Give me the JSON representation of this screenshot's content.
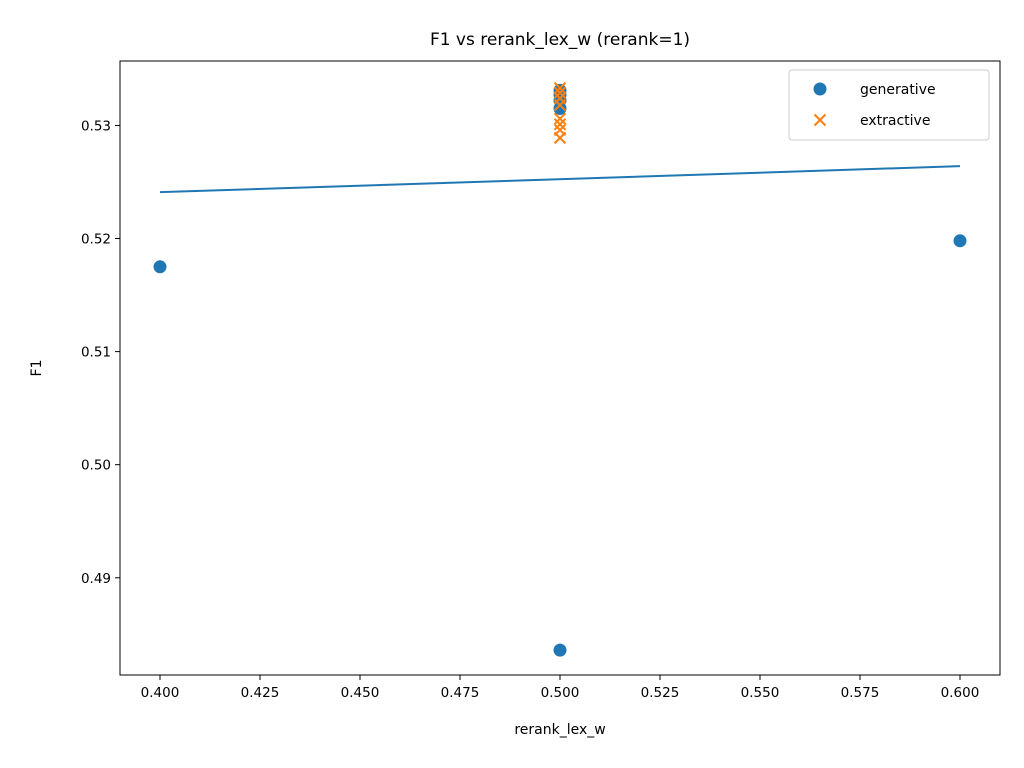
{
  "chart_data": {
    "type": "scatter",
    "title": "F1 vs rerank_lex_w (rerank=1)",
    "xlabel": "rerank_lex_w",
    "ylabel": "F1",
    "xlim": [
      0.39,
      0.61
    ],
    "ylim": [
      0.4814,
      0.5357
    ],
    "xticks": [
      "0.400",
      "0.425",
      "0.450",
      "0.475",
      "0.500",
      "0.525",
      "0.550",
      "0.575",
      "0.600"
    ],
    "yticks": [
      "0.49",
      "0.50",
      "0.51",
      "0.52",
      "0.53"
    ],
    "grid": false,
    "legend_position": "top-right",
    "series": [
      {
        "name": "generative",
        "marker": "circle",
        "color": "#1f77b4",
        "x": [
          0.4,
          0.5,
          0.5,
          0.5,
          0.5,
          0.5,
          0.6
        ],
        "y": [
          0.5175,
          0.4836,
          0.5315,
          0.5322,
          0.5327,
          0.5331,
          0.5198
        ]
      },
      {
        "name": "extractive",
        "marker": "x",
        "color": "#ff7f0e",
        "x": [
          0.5,
          0.5,
          0.5,
          0.5,
          0.5,
          0.5,
          0.5,
          0.5
        ],
        "y": [
          0.5289,
          0.5296,
          0.5301,
          0.5306,
          0.5318,
          0.5324,
          0.5329,
          0.5333
        ]
      }
    ],
    "trend_line": {
      "color": "#1f77b4",
      "x": [
        0.4,
        0.6
      ],
      "y": [
        0.5241,
        0.5264
      ]
    }
  }
}
